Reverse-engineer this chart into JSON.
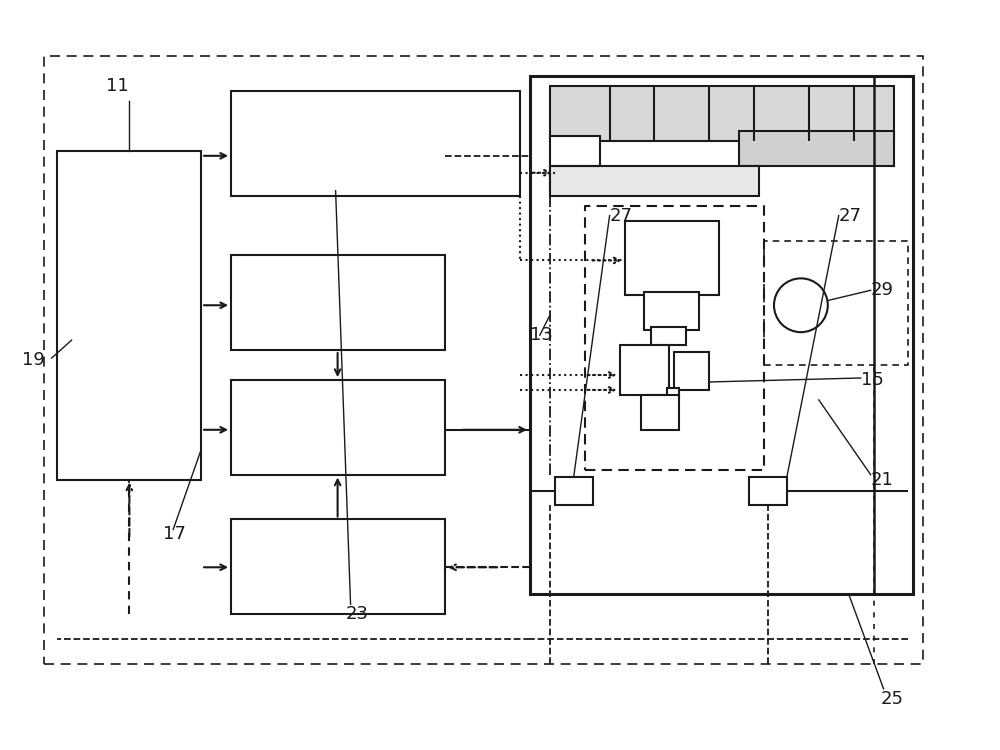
{
  "bg_color": "#ffffff",
  "line_color": "#1a1a1a",
  "label_color": "#1a1a1a",
  "label_fontsize": 13,
  "fig_width": 10.0,
  "fig_height": 7.5
}
